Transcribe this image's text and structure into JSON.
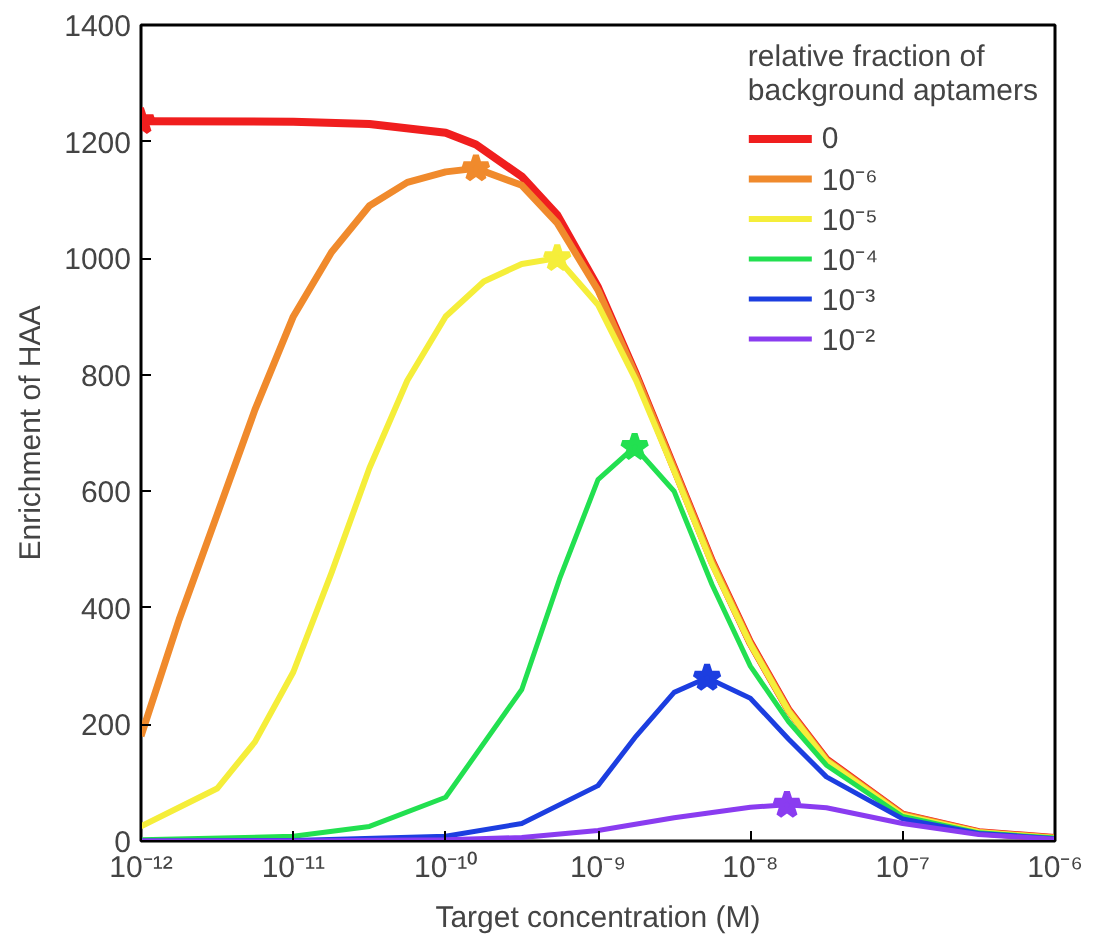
{
  "chart_data": {
    "type": "line",
    "xlabel": "Target concentration (M)",
    "ylabel": "Enrichment of HAA",
    "legend_title": "relative fraction of\nbackground aptamers",
    "log": "x",
    "grid": false,
    "legend": "top right",
    "line_style": "solid",
    "marker": "none",
    "xlim": [
      1e-12,
      1e-06
    ],
    "ylim": [
      0,
      1400
    ],
    "xticks": [
      {
        "value": 1e-12,
        "label": "10⁻¹²"
      },
      {
        "value": 1e-11,
        "label": "10⁻¹¹"
      },
      {
        "value": 1e-10,
        "label": "10⁻¹⁰"
      },
      {
        "value": 1e-09,
        "label": "10⁻⁹"
      },
      {
        "value": 1e-08,
        "label": "10⁻⁸"
      },
      {
        "value": 1e-07,
        "label": "10⁻⁷"
      },
      {
        "value": 1e-06,
        "label": "10⁻⁶"
      }
    ],
    "yticks": [
      0,
      200,
      400,
      600,
      800,
      1000,
      1200,
      1400
    ],
    "series": [
      {
        "name": "0",
        "color": "#f01e1e",
        "x": [
          1e-12,
          1e-11,
          3.16e-11,
          1e-10,
          1.58e-10,
          3.16e-10,
          5.4e-10,
          1e-09,
          1.78e-09,
          3.16e-09,
          5.6e-09,
          1e-08,
          1.78e-08,
          3.16e-08,
          1e-07,
          3.16e-07,
          1e-06
        ],
        "values": [
          1235,
          1234,
          1230,
          1215,
          1195,
          1140,
          1074,
          950,
          800,
          640,
          480,
          340,
          225,
          140,
          45,
          15,
          5
        ]
      },
      {
        "name": "10⁻⁶",
        "color": "#f08a2c",
        "x": [
          1e-12,
          1.78e-12,
          3.16e-12,
          5.6e-12,
          1e-11,
          1.78e-11,
          3.16e-11,
          5.6e-11,
          1e-10,
          1.58e-10,
          3.16e-10,
          5.4e-10,
          1e-09,
          1.78e-09,
          3.16e-09,
          5.6e-09,
          1e-08,
          1.78e-08,
          3.16e-08,
          1e-07,
          3.16e-07,
          1e-06
        ],
        "values": [
          180,
          380,
          560,
          740,
          900,
          1010,
          1090,
          1130,
          1148,
          1154,
          1125,
          1060,
          945,
          798,
          639,
          479,
          339,
          224,
          139,
          45,
          15,
          5
        ]
      },
      {
        "name": "10⁻⁵",
        "color": "#f5ee3a",
        "x": [
          1e-12,
          3.16e-12,
          5.6e-12,
          1e-11,
          1.78e-11,
          3.16e-11,
          5.6e-11,
          1e-10,
          1.78e-10,
          3.16e-10,
          5.4e-10,
          1e-09,
          1.78e-09,
          3.16e-09,
          5.6e-09,
          1e-08,
          1.78e-08,
          3.16e-08,
          1e-07,
          3.16e-07,
          1e-06
        ],
        "values": [
          25,
          90,
          170,
          290,
          460,
          640,
          790,
          900,
          960,
          990,
          1000,
          920,
          790,
          635,
          475,
          338,
          223,
          138,
          44,
          15,
          5
        ]
      },
      {
        "name": "10⁻⁴",
        "color": "#22e050",
        "x": [
          1e-12,
          1e-11,
          3.16e-11,
          1e-10,
          3.16e-10,
          5.6e-10,
          1e-09,
          1.74e-09,
          3.16e-09,
          5.6e-09,
          1e-08,
          1.78e-08,
          3.16e-08,
          1e-07,
          3.16e-07,
          1e-06
        ],
        "values": [
          2,
          8,
          25,
          75,
          260,
          450,
          620,
          676,
          600,
          440,
          300,
          205,
          130,
          42,
          14,
          5
        ]
      },
      {
        "name": "10⁻³",
        "color": "#1c3ee0",
        "x": [
          1e-12,
          1e-11,
          1e-10,
          3.16e-10,
          1e-09,
          1.78e-09,
          3.16e-09,
          5.2e-09,
          1e-08,
          1.78e-08,
          3.16e-08,
          1e-07,
          3.16e-07,
          1e-06
        ],
        "values": [
          0,
          1,
          8,
          30,
          95,
          180,
          255,
          280,
          245,
          175,
          110,
          38,
          13,
          4
        ]
      },
      {
        "name": "10⁻²",
        "color": "#8a3cf0",
        "x": [
          1e-12,
          1e-11,
          1e-10,
          3.16e-10,
          1e-09,
          3.16e-09,
          1e-08,
          1.74e-08,
          3.16e-08,
          1e-07,
          3.16e-07,
          1e-06
        ],
        "values": [
          0,
          0,
          2,
          6,
          18,
          40,
          58,
          62,
          57,
          30,
          11,
          3
        ]
      },
      {
        "type": "scatter",
        "marker": "star",
        "x": [
          1e-12,
          1.58e-10,
          5.4e-10,
          1.74e-09,
          5.2e-09,
          1.74e-08
        ],
        "values": [
          1235,
          1154,
          1000,
          676,
          280,
          62
        ],
        "colors": [
          "#f01e1e",
          "#f08a2c",
          "#f5ee3a",
          "#22e050",
          "#1c3ee0",
          "#8a3cf0"
        ]
      }
    ]
  }
}
